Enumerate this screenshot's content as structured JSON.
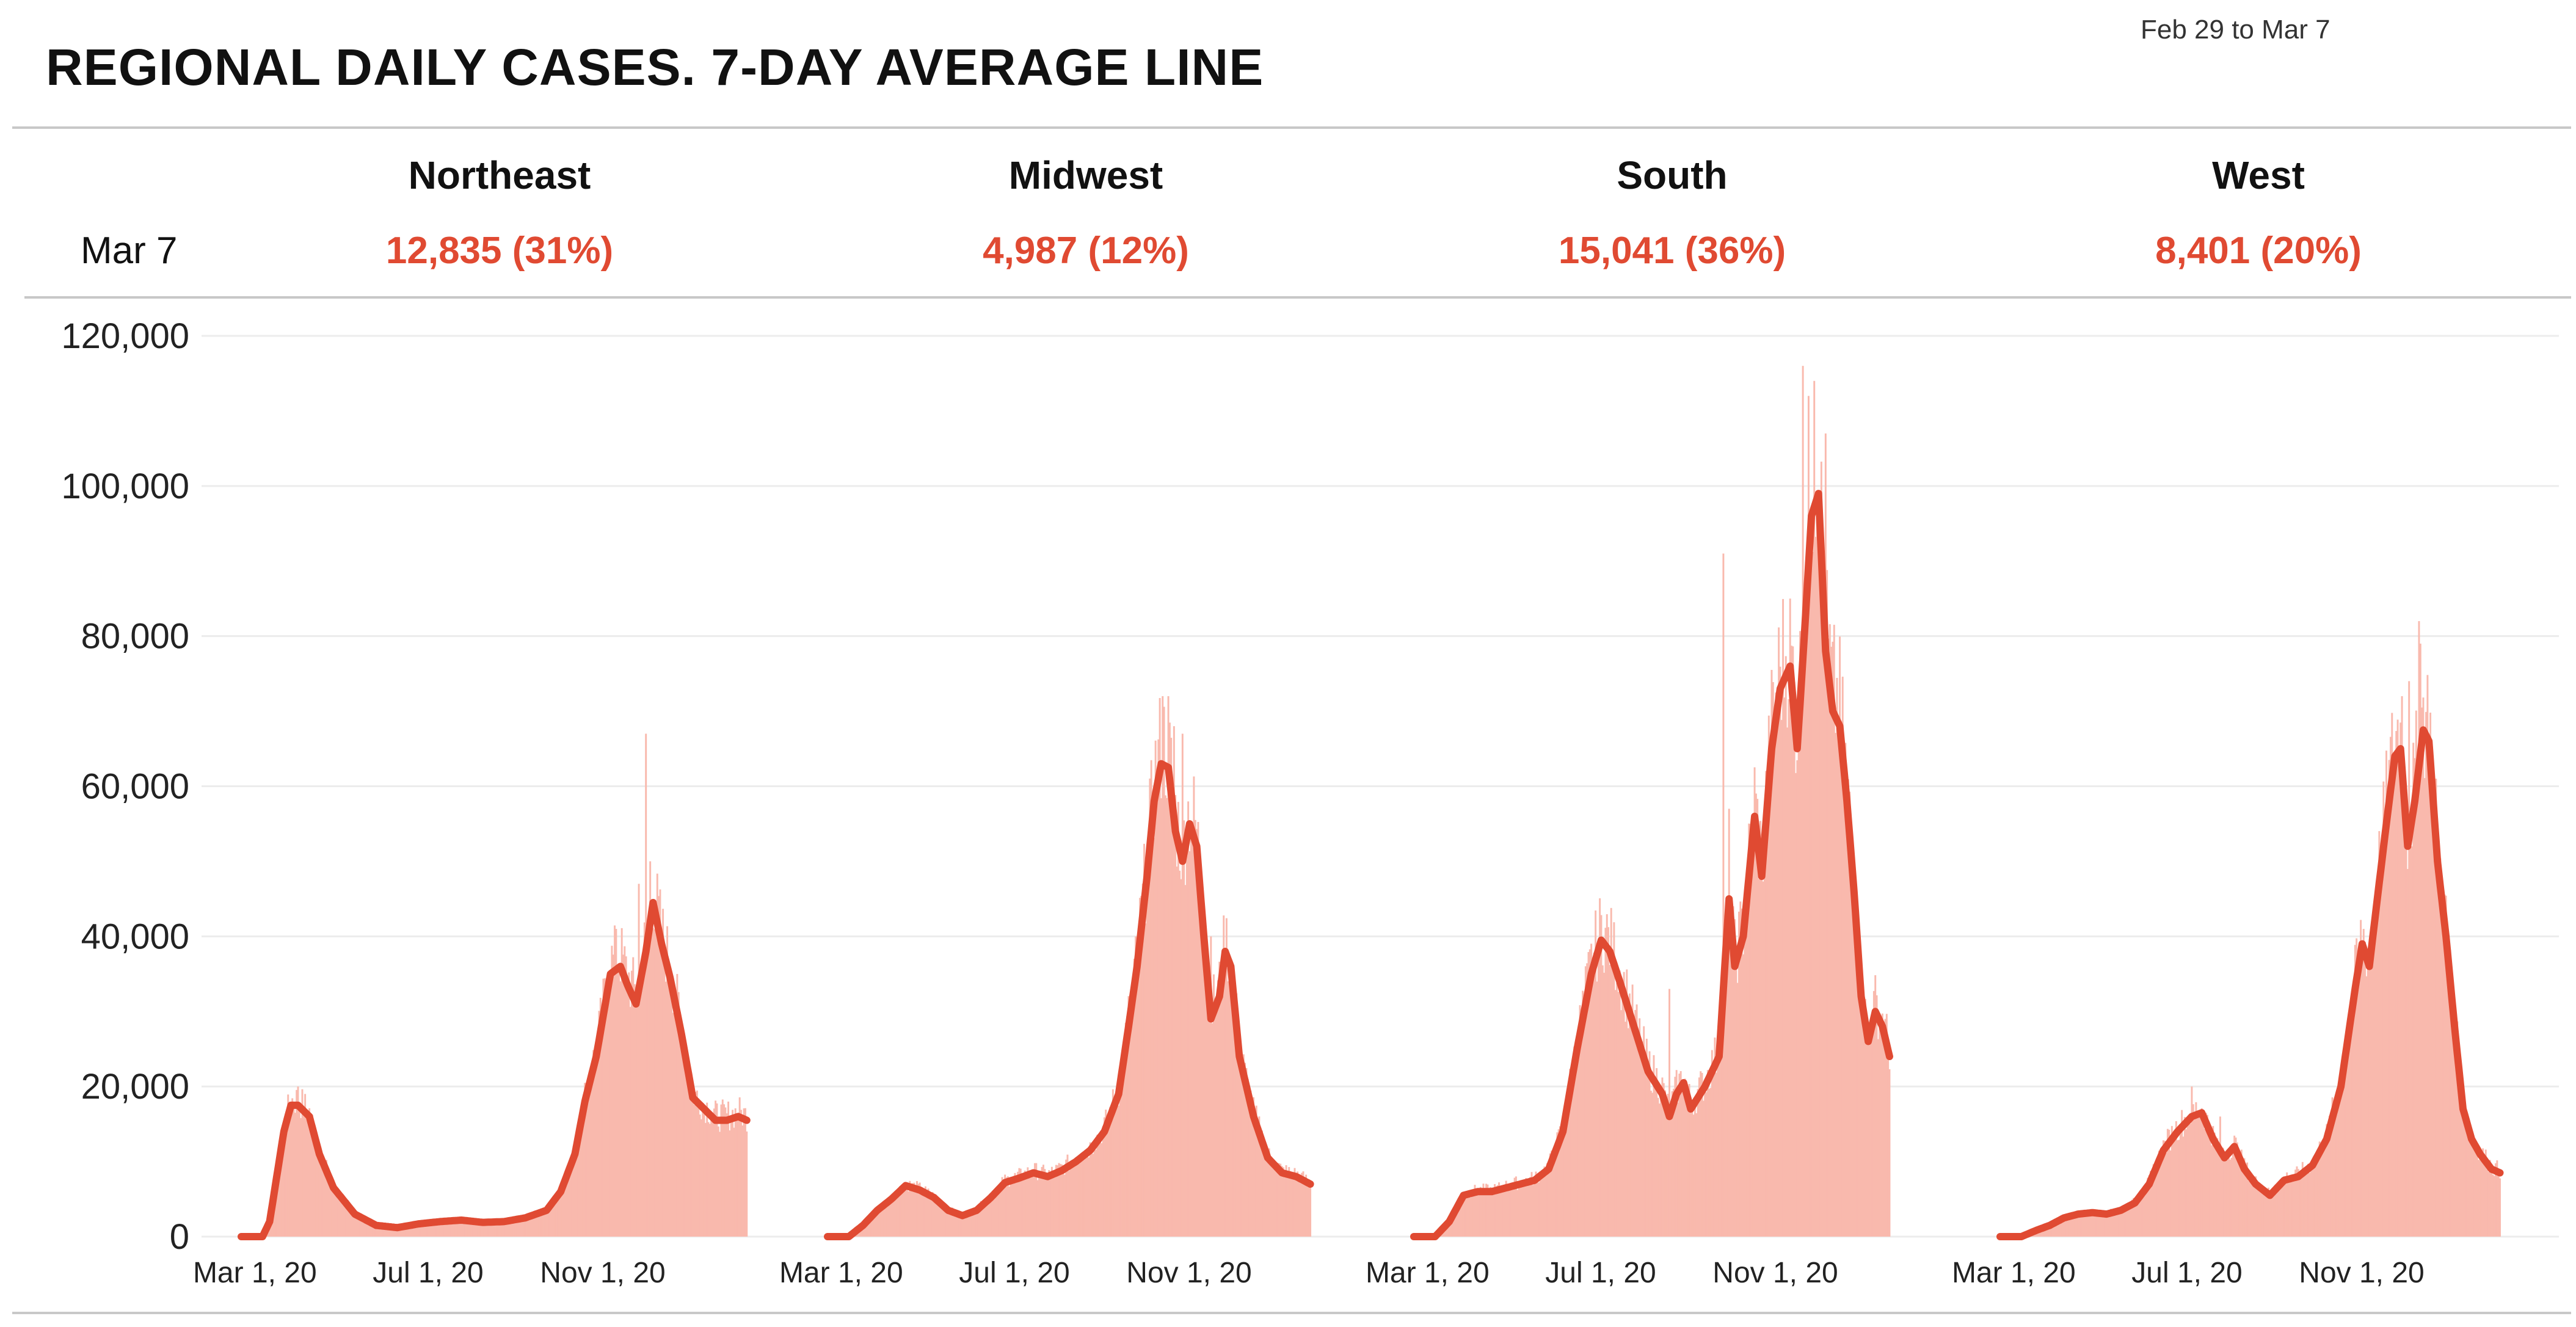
{
  "header": {
    "title": "REGIONAL DAILY CASES. 7-DAY AVERAGE LINE",
    "date_range": "Feb 29 to Mar 7",
    "date_label": "Mar 7"
  },
  "colors": {
    "bar": "#f9b9ad",
    "line": "#e04a32",
    "value_text": "#e04a32",
    "grid": "#ececec"
  },
  "regions": [
    {
      "name": "Northeast",
      "value": "12,835 (31%)"
    },
    {
      "name": "Midwest",
      "value": "4,987 (12%)"
    },
    {
      "name": "South",
      "value": "15,041 (36%)"
    },
    {
      "name": "West",
      "value": "8,401 (20%)"
    }
  ],
  "chart_data": {
    "type": "bar",
    "title": "REGIONAL DAILY CASES. 7-DAY AVERAGE LINE",
    "ylim": [
      0,
      120000
    ],
    "yticks": [
      0,
      20000,
      40000,
      60000,
      80000,
      100000,
      120000
    ],
    "ytick_labels": [
      "0",
      "20,000",
      "40,000",
      "60,000",
      "80,000",
      "100,000",
      "120,000"
    ],
    "x_range_days": [
      0,
      372
    ],
    "x_start": "Feb 29, 2020",
    "x_end": "Mar 7, 2021",
    "xticks_day": [
      1,
      123,
      246
    ],
    "xtick_labels": [
      "Mar 1, 20",
      "Jul 1, 20",
      "Nov 1, 20"
    ],
    "bar_series_name": "Daily cases",
    "line_series_name": "7-day average",
    "panels": [
      {
        "region": "Northeast",
        "avg_keypoints": [
          [
            0,
            0
          ],
          [
            15,
            0
          ],
          [
            20,
            2000
          ],
          [
            25,
            8000
          ],
          [
            30,
            14000
          ],
          [
            35,
            17500
          ],
          [
            40,
            17500
          ],
          [
            48,
            16000
          ],
          [
            55,
            11000
          ],
          [
            65,
            6500
          ],
          [
            80,
            3000
          ],
          [
            95,
            1500
          ],
          [
            110,
            1200
          ],
          [
            125,
            1700
          ],
          [
            140,
            2000
          ],
          [
            155,
            2200
          ],
          [
            170,
            1900
          ],
          [
            185,
            2000
          ],
          [
            200,
            2500
          ],
          [
            215,
            3500
          ],
          [
            225,
            6000
          ],
          [
            235,
            11000
          ],
          [
            242,
            18000
          ],
          [
            250,
            24000
          ],
          [
            260,
            35000
          ],
          [
            267,
            36000
          ],
          [
            272,
            33500
          ],
          [
            278,
            31000
          ],
          [
            285,
            38000
          ],
          [
            290,
            44500
          ],
          [
            296,
            39000
          ],
          [
            302,
            34500
          ],
          [
            310,
            27000
          ],
          [
            318,
            18500
          ],
          [
            326,
            17000
          ],
          [
            334,
            15500
          ],
          [
            342,
            15500
          ],
          [
            350,
            16000
          ],
          [
            356,
            15500
          ]
        ],
        "spikes": [
          [
            285,
            67000
          ],
          [
            280,
            47000
          ],
          [
            264,
            41000
          ],
          [
            288,
            50000
          ],
          [
            40,
            20000
          ]
        ]
      },
      {
        "region": "Midwest",
        "avg_keypoints": [
          [
            0,
            0
          ],
          [
            15,
            0
          ],
          [
            25,
            1500
          ],
          [
            35,
            3500
          ],
          [
            45,
            5000
          ],
          [
            55,
            6800
          ],
          [
            65,
            6200
          ],
          [
            75,
            5200
          ],
          [
            85,
            3500
          ],
          [
            95,
            2800
          ],
          [
            105,
            3500
          ],
          [
            115,
            5200
          ],
          [
            125,
            7200
          ],
          [
            135,
            7800
          ],
          [
            145,
            8500
          ],
          [
            155,
            8000
          ],
          [
            165,
            8800
          ],
          [
            175,
            10000
          ],
          [
            185,
            11500
          ],
          [
            195,
            14000
          ],
          [
            205,
            19000
          ],
          [
            212,
            28000
          ],
          [
            218,
            36000
          ],
          [
            225,
            48000
          ],
          [
            230,
            58000
          ],
          [
            235,
            63000
          ],
          [
            240,
            62500
          ],
          [
            245,
            54000
          ],
          [
            250,
            50000
          ],
          [
            255,
            55000
          ],
          [
            260,
            52000
          ],
          [
            265,
            40000
          ],
          [
            270,
            29000
          ],
          [
            276,
            32000
          ],
          [
            280,
            38000
          ],
          [
            284,
            36000
          ],
          [
            290,
            24000
          ],
          [
            300,
            16000
          ],
          [
            310,
            10500
          ],
          [
            320,
            8500
          ],
          [
            330,
            8000
          ],
          [
            340,
            7000
          ]
        ],
        "spikes": [
          [
            236,
            72000
          ],
          [
            240,
            72000
          ],
          [
            244,
            68000
          ],
          [
            250,
            67000
          ],
          [
            262,
            46000
          ],
          [
            270,
            40000
          ]
        ]
      },
      {
        "region": "South",
        "avg_keypoints": [
          [
            0,
            0
          ],
          [
            15,
            0
          ],
          [
            25,
            2000
          ],
          [
            35,
            5500
          ],
          [
            45,
            6000
          ],
          [
            55,
            6000
          ],
          [
            65,
            6500
          ],
          [
            75,
            7000
          ],
          [
            85,
            7500
          ],
          [
            95,
            9000
          ],
          [
            105,
            14000
          ],
          [
            115,
            25000
          ],
          [
            125,
            35000
          ],
          [
            132,
            39500
          ],
          [
            138,
            38000
          ],
          [
            145,
            34000
          ],
          [
            155,
            28000
          ],
          [
            165,
            22000
          ],
          [
            175,
            19000
          ],
          [
            180,
            16000
          ],
          [
            185,
            19000
          ],
          [
            190,
            20500
          ],
          [
            195,
            17000
          ],
          [
            205,
            20000
          ],
          [
            215,
            24000
          ],
          [
            222,
            45000
          ],
          [
            226,
            36000
          ],
          [
            232,
            40000
          ],
          [
            240,
            56000
          ],
          [
            245,
            48000
          ],
          [
            252,
            65000
          ],
          [
            258,
            73000
          ],
          [
            265,
            76000
          ],
          [
            270,
            65000
          ],
          [
            275,
            80000
          ],
          [
            280,
            96000
          ],
          [
            285,
            99000
          ],
          [
            290,
            78000
          ],
          [
            295,
            70000
          ],
          [
            300,
            68000
          ],
          [
            305,
            58000
          ],
          [
            310,
            46000
          ],
          [
            315,
            32000
          ],
          [
            320,
            26000
          ],
          [
            325,
            30000
          ],
          [
            330,
            28000
          ],
          [
            335,
            24000
          ]
        ],
        "spikes": [
          [
            218,
            91000
          ],
          [
            222,
            57000
          ],
          [
            274,
            116000
          ],
          [
            278,
            112000
          ],
          [
            282,
            114000
          ],
          [
            265,
            85000
          ],
          [
            290,
            107000
          ],
          [
            180,
            33000
          ]
        ]
      },
      {
        "region": "West",
        "avg_keypoints": [
          [
            0,
            0
          ],
          [
            15,
            0
          ],
          [
            25,
            800
          ],
          [
            35,
            1500
          ],
          [
            45,
            2500
          ],
          [
            55,
            3000
          ],
          [
            65,
            3200
          ],
          [
            75,
            3000
          ],
          [
            85,
            3500
          ],
          [
            95,
            4500
          ],
          [
            105,
            7000
          ],
          [
            115,
            11500
          ],
          [
            125,
            14000
          ],
          [
            135,
            16000
          ],
          [
            142,
            16500
          ],
          [
            150,
            13000
          ],
          [
            158,
            10500
          ],
          [
            165,
            12000
          ],
          [
            172,
            9000
          ],
          [
            180,
            7000
          ],
          [
            190,
            5500
          ],
          [
            200,
            7500
          ],
          [
            210,
            8000
          ],
          [
            220,
            9500
          ],
          [
            230,
            13000
          ],
          [
            240,
            20000
          ],
          [
            250,
            33000
          ],
          [
            255,
            39000
          ],
          [
            260,
            36000
          ],
          [
            265,
            44000
          ],
          [
            272,
            55000
          ],
          [
            278,
            64000
          ],
          [
            282,
            65000
          ],
          [
            287,
            52000
          ],
          [
            292,
            58000
          ],
          [
            298,
            67500
          ],
          [
            302,
            66000
          ],
          [
            308,
            50000
          ],
          [
            314,
            40000
          ],
          [
            320,
            28000
          ],
          [
            326,
            17000
          ],
          [
            332,
            13000
          ],
          [
            338,
            11000
          ],
          [
            346,
            9000
          ],
          [
            352,
            8500
          ]
        ],
        "spikes": [
          [
            288,
            74000
          ],
          [
            295,
            82000
          ],
          [
            296,
            79000
          ],
          [
            283,
            72000
          ],
          [
            135,
            20000
          ],
          [
            155,
            16000
          ]
        ]
      }
    ]
  }
}
